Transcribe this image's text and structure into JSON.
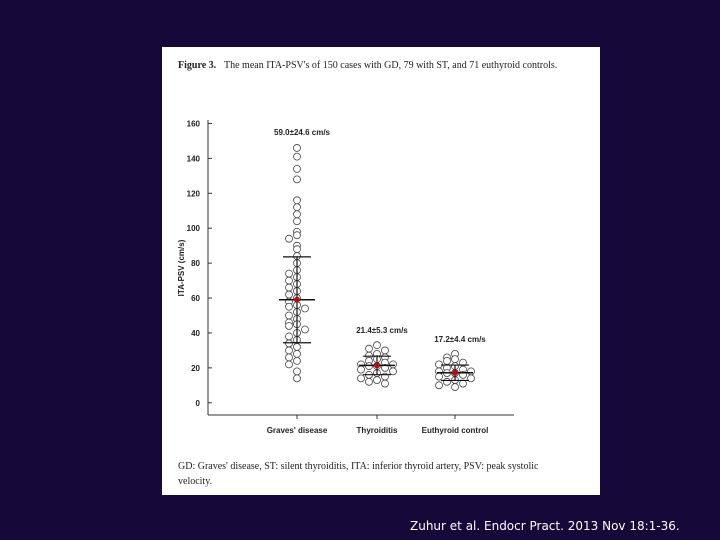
{
  "chart_data": {
    "type": "dot",
    "figure_label": "Figure 3.",
    "title": "The mean ITA-PSV's of 150 cases with GD, 79 with ST, and 71 euthyroid controls.",
    "footnote": [
      "GD: Graves' disease, ST: silent thyroiditis, ITA: inferior thyroid artery, PSV: peak systolic",
      "velocity."
    ],
    "y_label": "ITA-PSV (cm/s)",
    "categories": [
      "Graves' disease",
      "Thyroiditis",
      "Euthyroid control"
    ],
    "means": [
      59.0,
      21.4,
      17.2
    ],
    "sds": [
      24.6,
      5.3,
      4.4
    ],
    "value_labels": [
      "59.0±24.6 cm/s",
      "21.4±5.3 cm/s",
      "17.2±4.4 cm/s"
    ],
    "points": [
      [
        146,
        141,
        134,
        128,
        116,
        112,
        108,
        104,
        98,
        96,
        94,
        90,
        88,
        84,
        80,
        76,
        74,
        72,
        70,
        68,
        66,
        64,
        62,
        60,
        58,
        56,
        55,
        54,
        52,
        50,
        48,
        46,
        45,
        44,
        42,
        40,
        38,
        36,
        34,
        32,
        30,
        28,
        26,
        24,
        22,
        18,
        14
      ],
      [
        33,
        31,
        30,
        28,
        27,
        26,
        25,
        24,
        23,
        22,
        22,
        21,
        21,
        20,
        19,
        18,
        17,
        16,
        15,
        14,
        13,
        12,
        11
      ],
      [
        28,
        26,
        25,
        24,
        23,
        22,
        21,
        20,
        19,
        18,
        18,
        17,
        17,
        16,
        15,
        14,
        13,
        12,
        11,
        10,
        9
      ]
    ],
    "ylim": [
      -7,
      162
    ],
    "yticks": [
      0,
      20,
      40,
      60,
      80,
      100,
      120,
      140,
      160
    ],
    "point_color": "#ffffff",
    "mean_color": "#b01010"
  },
  "citation": "Zuhur et al. Endocr Pract. 2013 Nov 18:1-36."
}
